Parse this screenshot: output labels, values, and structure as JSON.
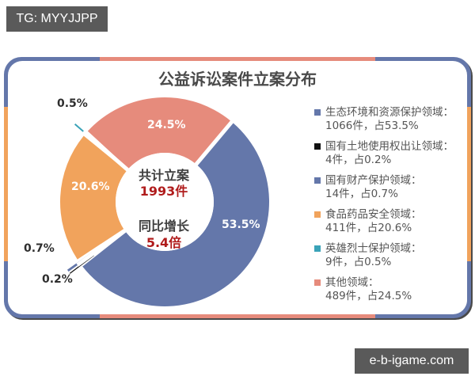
{
  "overlay": {
    "tag": "TG: MYYJJPP",
    "watermark": "e-b-igame.com"
  },
  "colors": {
    "blue": "#6477aa",
    "black": "#111111",
    "orange": "#f1a35c",
    "teal": "#3aa3b8",
    "salmon": "#e68b7c",
    "title": "#4a4a4a",
    "center_red": "#b01c1c"
  },
  "center": {
    "line1": "共计立案",
    "line2": "1993件",
    "line3": "同比增长",
    "line4": "5.4倍"
  },
  "chart_data": {
    "type": "pie",
    "variant": "donut",
    "title": "公益诉讼案件立案分布",
    "total_label": "共计立案 1993件",
    "growth_label": "同比增长 5.4倍",
    "categories": [
      "生态环境和资源保护领域",
      "国有土地使用权出让领域",
      "国有财产保护领域",
      "食品药品安全领域",
      "英雄烈士保护领域",
      "其他领域"
    ],
    "counts": [
      1066,
      4,
      14,
      411,
      9,
      489
    ],
    "values": [
      53.5,
      0.2,
      0.7,
      20.6,
      0.5,
      24.5
    ],
    "unit": "%",
    "colors": [
      "#6477aa",
      "#111111",
      "#6477aa",
      "#f1a35c",
      "#3aa3b8",
      "#e68b7c"
    ],
    "data_labels": [
      "53.5%",
      "0.2%",
      "0.7%",
      "20.6%",
      "0.5%",
      "24.5%"
    ],
    "legend_position": "right",
    "total": 1993
  },
  "legend": [
    {
      "name": "生态环境和资源保护领域：",
      "detail": "1066件，占53.5%",
      "color": "#6477aa"
    },
    {
      "name": "国有土地使用权出让领域：",
      "detail": "4件，占0.2%",
      "color": "#111111"
    },
    {
      "name": "国有财产保护领域：",
      "detail": "14件，占0.7%",
      "color": "#6477aa"
    },
    {
      "name": "食品药品安全领域：",
      "detail": "411件，占20.6%",
      "color": "#f1a35c"
    },
    {
      "name": "英雄烈士保护领域：",
      "detail": "9件，占0.5%",
      "color": "#3aa3b8"
    },
    {
      "name": "其他领域：",
      "detail": "489件，占24.5%",
      "color": "#e68b7c"
    }
  ]
}
